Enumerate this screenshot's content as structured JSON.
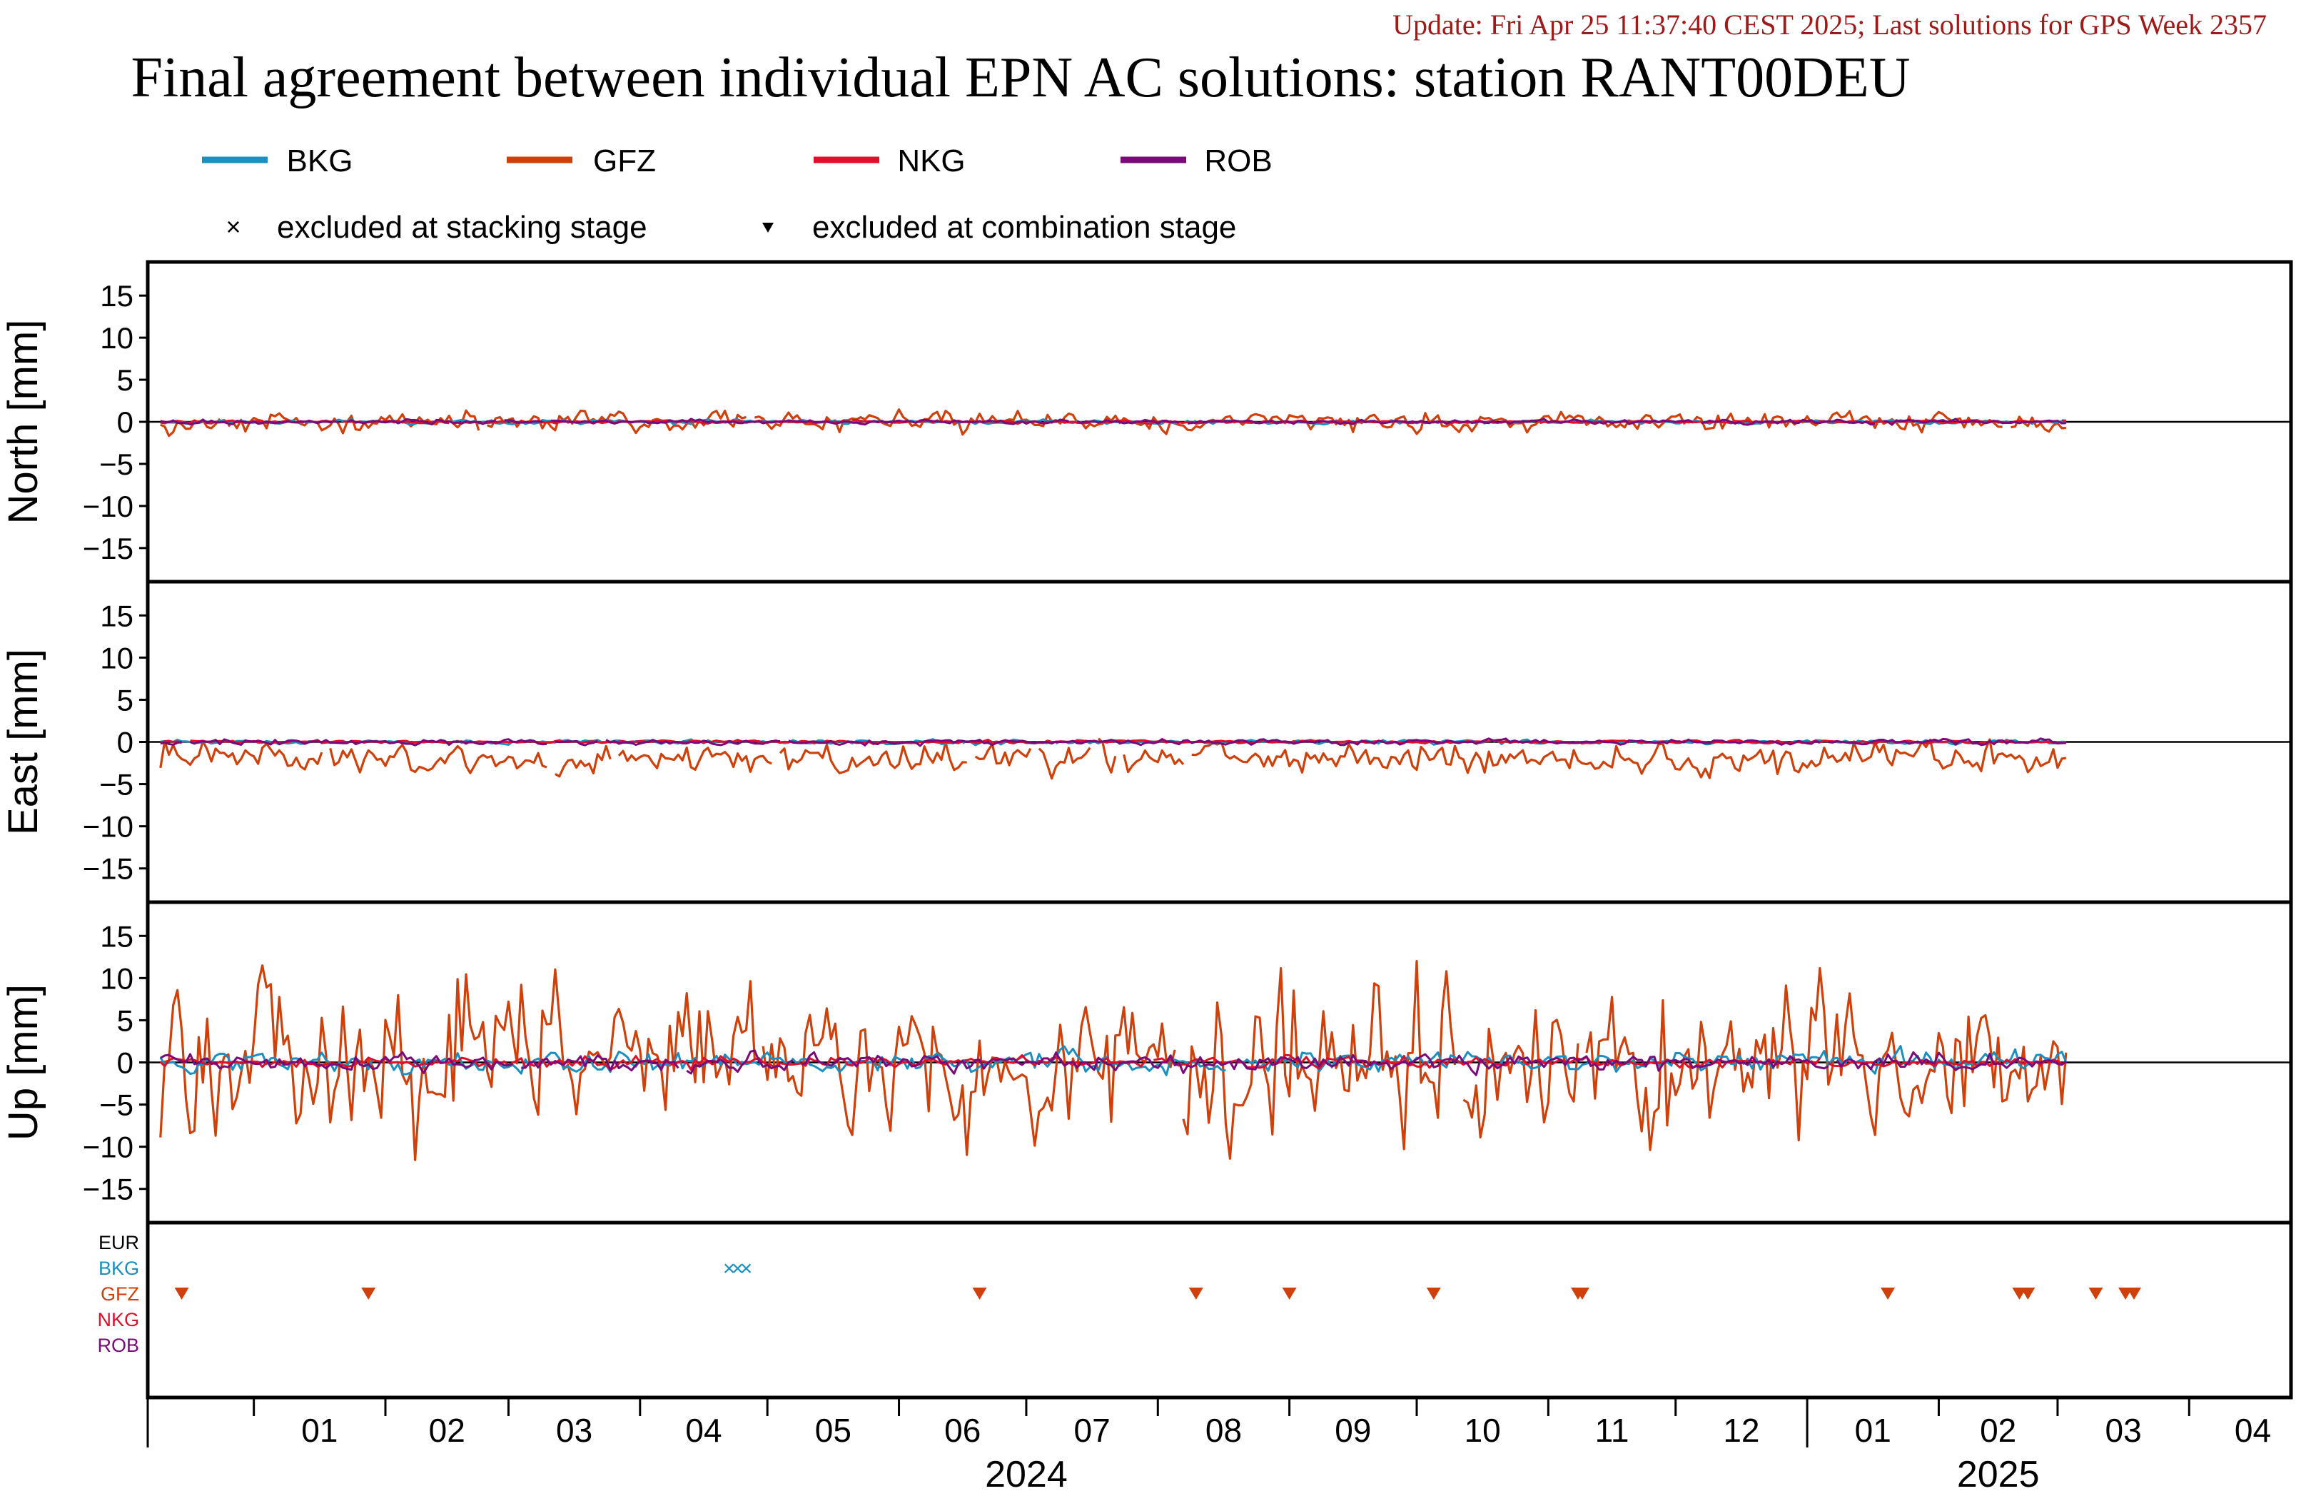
{
  "header": {
    "update_line": "Update: Fri Apr 25 11:37:40 CEST 2025; Last solutions for GPS Week 2357",
    "title": "Final agreement between individual EPN AC solutions: station RANT00DEU"
  },
  "legend": {
    "series": [
      {
        "name": "BKG",
        "color": "#1a8fc0"
      },
      {
        "name": "GFZ",
        "color": "#d0400a"
      },
      {
        "name": "NKG",
        "color": "#e0102a"
      },
      {
        "name": "ROB",
        "color": "#7a0a7a"
      }
    ],
    "markers": [
      {
        "symbol": "×",
        "label": "excluded at stacking stage"
      },
      {
        "symbol": "▼",
        "label": "excluded at combination stage"
      }
    ]
  },
  "colors": {
    "BKG": "#1a8fc0",
    "GFZ": "#d0400a",
    "NKG": "#e0102a",
    "ROB": "#7a0a7a",
    "EUR": "#000000",
    "title_red": "#a01a1a"
  },
  "chart_data": {
    "type": "line",
    "x_unit": "month",
    "x_range": [
      "2023-12-07",
      "2025-04-25"
    ],
    "month_ticks": [
      {
        "date": "2024-01",
        "label": "01"
      },
      {
        "date": "2024-02",
        "label": "02"
      },
      {
        "date": "2024-03",
        "label": "03"
      },
      {
        "date": "2024-04",
        "label": "04"
      },
      {
        "date": "2024-05",
        "label": "05"
      },
      {
        "date": "2024-06",
        "label": "06"
      },
      {
        "date": "2024-07",
        "label": "07"
      },
      {
        "date": "2024-08",
        "label": "08"
      },
      {
        "date": "2024-09",
        "label": "09"
      },
      {
        "date": "2024-10",
        "label": "10"
      },
      {
        "date": "2024-11",
        "label": "11"
      },
      {
        "date": "2024-12",
        "label": "12"
      },
      {
        "date": "2025-01",
        "label": "01"
      },
      {
        "date": "2025-02",
        "label": "02"
      },
      {
        "date": "2025-03",
        "label": "03"
      },
      {
        "date": "2025-04",
        "label": "04"
      }
    ],
    "year_labels": [
      {
        "date": "2024-07-01",
        "label": "2024"
      },
      {
        "date": "2025-02-15",
        "label": "2025"
      }
    ],
    "panels": [
      {
        "id": "north",
        "ylabel": "North [mm]",
        "ylim": [
          -19,
          19
        ],
        "yticks": [
          15,
          10,
          5,
          0,
          -5,
          -10,
          -15
        ],
        "series": [
          {
            "name": "GFZ",
            "approx_range_mm": [
              -2,
              3
            ]
          },
          {
            "name": "BKG",
            "approx_range_mm": [
              -0.5,
              0.5
            ]
          },
          {
            "name": "NKG",
            "approx_range_mm": [
              -0.3,
              0.3
            ]
          },
          {
            "name": "ROB",
            "approx_range_mm": [
              -0.5,
              0.5
            ]
          }
        ]
      },
      {
        "id": "east",
        "ylabel": "East [mm]",
        "ylim": [
          -19,
          19
        ],
        "yticks": [
          15,
          10,
          5,
          0,
          -5,
          -10,
          -15
        ],
        "series": [
          {
            "name": "GFZ",
            "approx_mean_mm": -2,
            "approx_range_mm": [
              -4,
              3
            ]
          },
          {
            "name": "BKG",
            "approx_range_mm": [
              -0.5,
              0.5
            ]
          },
          {
            "name": "NKG",
            "approx_range_mm": [
              -0.3,
              0.3
            ]
          },
          {
            "name": "ROB",
            "approx_range_mm": [
              -1,
              2
            ]
          }
        ]
      },
      {
        "id": "up",
        "ylabel": "Up [mm]",
        "ylim": [
          -19,
          19
        ],
        "yticks": [
          15,
          10,
          5,
          0,
          -5,
          -10,
          -15
        ],
        "series": [
          {
            "name": "GFZ",
            "approx_range_mm": [
              -11,
              11
            ]
          },
          {
            "name": "BKG",
            "approx_range_mm": [
              -2,
              3
            ]
          },
          {
            "name": "NKG",
            "approx_range_mm": [
              -1,
              1
            ]
          },
          {
            "name": "ROB",
            "approx_range_mm": [
              -1.5,
              2
            ]
          }
        ]
      }
    ],
    "exclusion_panel": {
      "rows": [
        "EUR",
        "BKG",
        "GFZ",
        "NKG",
        "ROB"
      ],
      "stacking_exclusions": [
        {
          "ac": "BKG",
          "dates": [
            "2024-04-22",
            "2024-04-24",
            "2024-04-26"
          ]
        }
      ],
      "combination_exclusions": [
        {
          "ac": "GFZ",
          "dates": [
            "2023-12-15",
            "2024-01-28",
            "2024-06-20",
            "2024-08-10",
            "2024-09-01",
            "2024-10-05",
            "2024-11-08",
            "2024-11-09",
            "2025-01-20",
            "2025-02-20",
            "2025-02-22",
            "2025-03-10",
            "2025-03-17",
            "2025-03-19"
          ]
        }
      ]
    }
  }
}
